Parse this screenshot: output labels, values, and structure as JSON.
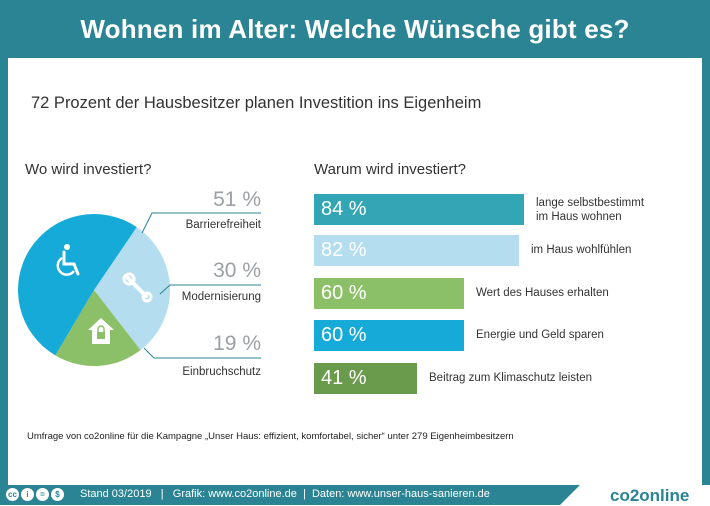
{
  "header": {
    "title": "Wohnen im Alter: Welche Wünsche gibt es?"
  },
  "subtitle": "72 Prozent der Hausbesitzer planen Investition ins Eigenheim",
  "chart_data": [
    {
      "type": "pie",
      "title": "Wo wird investiert?",
      "categories": [
        "Barrierefreiheit",
        "Modernisierung",
        "Einbruchschutz"
      ],
      "values": [
        51,
        30,
        19
      ],
      "value_labels": [
        "51 %",
        "30 %",
        "19 %"
      ],
      "colors": [
        "#16aad8",
        "#b4def0",
        "#8cc068"
      ],
      "icons": [
        "wheelchair-icon",
        "wrench-icon",
        "house-lock-icon"
      ]
    },
    {
      "type": "bar",
      "orientation": "horizontal",
      "title": "Warum wird investiert?",
      "categories": [
        "lange selbstbestimmt im Haus wohnen",
        "im Haus wohlfühlen",
        "Wert des Hauses erhalten",
        "Energie und Geld sparen",
        "Beitrag zum Klimaschutz leisten"
      ],
      "category_lines": [
        [
          "lange selbstbestimmt",
          "im Haus wohnen"
        ],
        [
          "im Haus wohlfühlen"
        ],
        [
          "Wert des Hauses erhalten"
        ],
        [
          "Energie und Geld sparen"
        ],
        [
          "Beitrag zum Klimaschutz leisten"
        ]
      ],
      "values": [
        84,
        82,
        60,
        60,
        41
      ],
      "value_labels": [
        "84 %",
        "82 %",
        "60 %",
        "60 %",
        "41 %"
      ],
      "colors": [
        "#32a6b4",
        "#b4def0",
        "#8cc068",
        "#16aad8",
        "#6a9a4c"
      ]
    }
  ],
  "note": "Umfrage von co2online für die Kampagne „Unser Haus: effizient, komfortabel, sicher“ unter 279 Eigenheimbesitzern",
  "footer": {
    "license_icons": [
      "cc-icon",
      "by-icon",
      "nd-icon",
      "nc-icon"
    ],
    "text": "Stand 03/2019   |   Grafik: www.co2online.de  |  Daten: www.unser-haus-sanieren.de",
    "logo": "co2online"
  }
}
